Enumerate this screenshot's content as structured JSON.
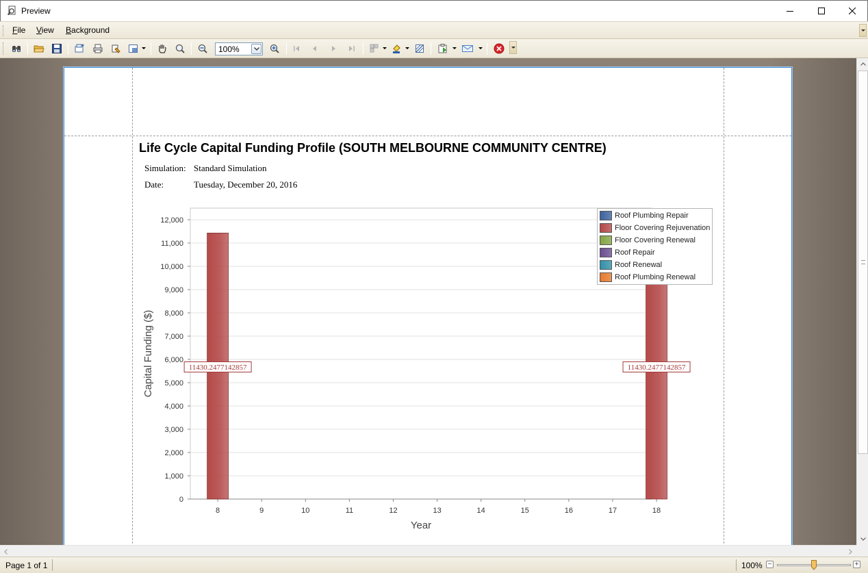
{
  "window": {
    "title": "Preview",
    "controls": [
      "minimize-icon",
      "maximize-icon",
      "close-icon"
    ]
  },
  "menu": {
    "items": [
      {
        "label": "File",
        "accel": "F"
      },
      {
        "label": "View",
        "accel": "V"
      },
      {
        "label": "Background",
        "accel": "B"
      }
    ]
  },
  "toolbar": {
    "buttons": [
      "find-icon",
      "open-icon",
      "save-icon",
      "page-setup-icon",
      "print-icon",
      "quick-print-icon",
      "scale-icon",
      "hand-tool-icon",
      "magnifier-icon",
      "zoom-out-icon",
      "zoom-in-icon",
      "first-page-icon",
      "previous-page-icon",
      "next-page-icon",
      "last-page-icon",
      "multiple-pages-icon",
      "background-color-icon",
      "watermark-icon",
      "export-icon",
      "email-icon",
      "close-preview-icon"
    ],
    "zoom_value": "100%"
  },
  "report": {
    "title": "Life Cycle Capital Funding Profile (SOUTH MELBOURNE COMMUNITY CENTRE)",
    "simulation_label": "Simulation:",
    "simulation_value": "Standard Simulation",
    "date_label": "Date:",
    "date_value": "Tuesday, December 20, 2016"
  },
  "chart_data": {
    "type": "bar",
    "categories": [
      "8",
      "9",
      "10",
      "11",
      "12",
      "13",
      "14",
      "15",
      "16",
      "17",
      "18"
    ],
    "series": [
      {
        "name": "Roof Plumbing Repair",
        "color": "#3e63a0",
        "values": [
          0,
          0,
          0,
          0,
          0,
          0,
          0,
          0,
          0,
          0,
          0
        ]
      },
      {
        "name": "Floor Covering Rejuvenation",
        "color": "#b44a49",
        "values": [
          11430.2477142857,
          0,
          0,
          0,
          0,
          0,
          0,
          0,
          0,
          0,
          11430.2477142857
        ]
      },
      {
        "name": "Floor Covering Renewal",
        "color": "#84a544",
        "values": [
          0,
          0,
          0,
          0,
          0,
          0,
          0,
          0,
          0,
          0,
          0
        ]
      },
      {
        "name": "Roof Repair",
        "color": "#6b4e91",
        "values": [
          0,
          0,
          0,
          0,
          0,
          0,
          0,
          0,
          0,
          0,
          0
        ]
      },
      {
        "name": "Roof Renewal",
        "color": "#3291a8",
        "values": [
          0,
          0,
          0,
          0,
          0,
          0,
          0,
          0,
          0,
          0,
          0
        ]
      },
      {
        "name": "Roof Plumbing Renewal",
        "color": "#e67a2c",
        "values": [
          0,
          0,
          0,
          0,
          0,
          0,
          0,
          0,
          0,
          0,
          0
        ]
      }
    ],
    "data_labels": [
      {
        "category": "8",
        "text": "11430.2477142857"
      },
      {
        "category": "18",
        "text": "11430.2477142857"
      }
    ],
    "ylabel": "Capital Funding ($)",
    "xlabel": "Year",
    "ylim": [
      0,
      12500
    ],
    "yticks": [
      0,
      1000,
      2000,
      3000,
      4000,
      5000,
      6000,
      7000,
      8000,
      9000,
      10000,
      11000,
      12000
    ],
    "ytick_labels": [
      "0",
      "1,000",
      "2,000",
      "3,000",
      "4,000",
      "5,000",
      "6,000",
      "7,000",
      "8,000",
      "9,000",
      "10,000",
      "11,000",
      "12,000"
    ],
    "grid": true,
    "legend_position": "top-right"
  },
  "status": {
    "page_info": "Page 1 of 1",
    "zoom": "100%",
    "zoom_fraction": 0.5
  }
}
